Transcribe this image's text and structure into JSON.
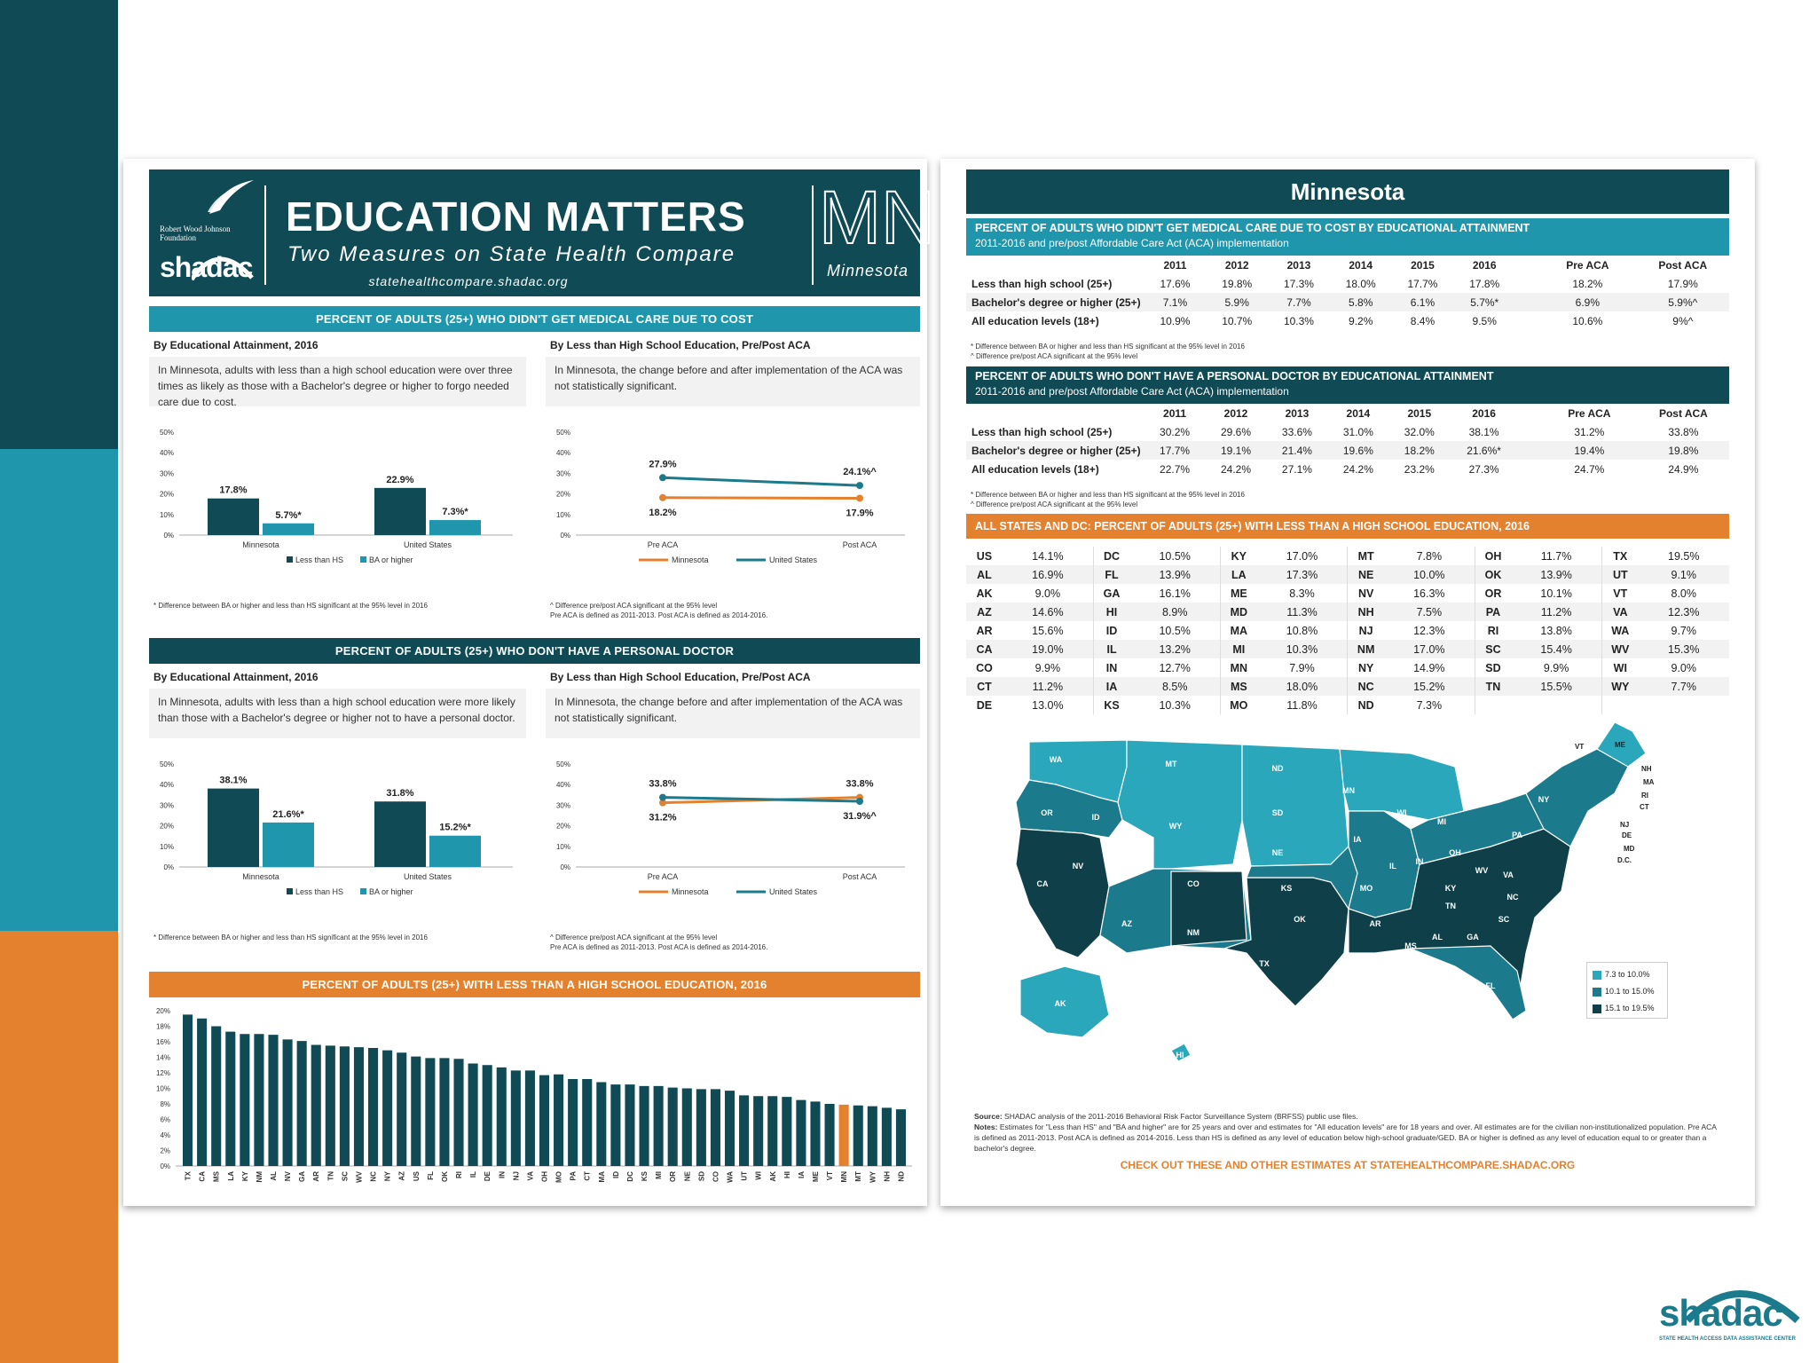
{
  "colors": {
    "dark": "#0f4a55",
    "teal": "#2096ad",
    "orange": "#e4812e",
    "mid": "#1b7a8c"
  },
  "header": {
    "rwj_line1": "Robert Wood Johnson",
    "rwj_line2": "Foundation",
    "shadac_logo": "shadac",
    "title": "EDUCATION MATTERS",
    "subtitle": "Two Measures on State Health Compare",
    "url": "statehealthcompare.shadac.org",
    "state_abbr": "MN",
    "state_name": "Minnesota"
  },
  "section1": {
    "title": "PERCENT OF ADULTS (25+) WHO DIDN'T GET MEDICAL CARE DUE TO COST",
    "left_sub": "By Educational Attainment, 2016",
    "left_note": "In Minnesota, adults with less than a high school education were over three times as likely as those with a Bachelor's degree or higher to forgo needed care due to cost.",
    "right_sub": "By Less than High School Education, Pre/Post ACA",
    "right_note": "In Minnesota, the change before and after implementation of the ACA was not statistically significant.",
    "left_fn": "* Difference between BA or higher and less than HS significant at the 95% level in 2016",
    "right_fn1": "^ Difference pre/post ACA significant at the 95% level",
    "right_fn2": "Pre ACA is defined as 2011-2013. Post ACA is defined as 2014-2016."
  },
  "section2": {
    "title": "PERCENT OF ADULTS (25+) WHO DON'T HAVE A PERSONAL DOCTOR",
    "left_sub": "By Educational Attainment, 2016",
    "left_note": "In Minnesota, adults with less than a high school education were more likely than those with a Bachelor's degree or higher not to have a personal doctor.",
    "right_sub": "By Less than High School Education, Pre/Post ACA",
    "right_note": "In Minnesota, the change before and after implementation of the ACA was not statistically significant.",
    "left_fn": "* Difference between BA or higher and less than HS significant at the 95% level in 2016",
    "right_fn1": "^ Difference pre/post ACA significant at the 95% level",
    "right_fn2": "Pre ACA is defined as 2011-2013. Post ACA is defined as 2014-2016."
  },
  "section3": {
    "title": "PERCENT OF ADULTS (25+) WITH LESS THAN A HIGH SCHOOL EDUCATION, 2016"
  },
  "chart_data": [
    {
      "type": "bar",
      "title": "Didn't get medical care due to cost, by educational attainment, 2016",
      "categories": [
        "Minnesota",
        "United States"
      ],
      "series": [
        {
          "name": "Less than HS",
          "values": [
            17.8,
            22.9
          ],
          "labels": [
            "17.8%",
            "22.9%"
          ]
        },
        {
          "name": "BA or higher",
          "values": [
            5.7,
            7.3
          ],
          "labels": [
            "5.7%*",
            "7.3%*"
          ]
        }
      ],
      "yticks": [
        "0%",
        "10%",
        "20%",
        "30%",
        "40%",
        "50%"
      ],
      "ylim": [
        0,
        50
      ]
    },
    {
      "type": "line",
      "title": "Didn't get medical care due to cost, less than HS, pre/post ACA",
      "categories": [
        "Pre ACA",
        "Post ACA"
      ],
      "series": [
        {
          "name": "Minnesota",
          "values": [
            18.2,
            17.9
          ],
          "labels": [
            "18.2%",
            "17.9%"
          ]
        },
        {
          "name": "United States",
          "values": [
            27.9,
            24.1
          ],
          "labels": [
            "27.9%",
            "24.1%^"
          ]
        }
      ],
      "yticks": [
        "0%",
        "10%",
        "20%",
        "30%",
        "40%",
        "50%"
      ],
      "ylim": [
        0,
        50
      ]
    },
    {
      "type": "bar",
      "title": "Don't have a personal doctor, by educational attainment, 2016",
      "categories": [
        "Minnesota",
        "United States"
      ],
      "series": [
        {
          "name": "Less than HS",
          "values": [
            38.1,
            31.8
          ],
          "labels": [
            "38.1%",
            "31.8%"
          ]
        },
        {
          "name": "BA or higher",
          "values": [
            21.6,
            15.2
          ],
          "labels": [
            "21.6%*",
            "15.2%*"
          ]
        }
      ],
      "yticks": [
        "0%",
        "10%",
        "20%",
        "30%",
        "40%",
        "50%"
      ],
      "ylim": [
        0,
        50
      ]
    },
    {
      "type": "line",
      "title": "Don't have a personal doctor, less than HS, pre/post ACA",
      "categories": [
        "Pre ACA",
        "Post ACA"
      ],
      "series": [
        {
          "name": "Minnesota",
          "values": [
            31.2,
            33.8
          ],
          "labels": [
            "31.2%",
            "33.8%"
          ]
        },
        {
          "name": "United States",
          "values": [
            33.8,
            31.9
          ],
          "labels": [
            "33.8%",
            "31.9%^"
          ]
        }
      ],
      "yticks": [
        "0%",
        "10%",
        "20%",
        "30%",
        "40%",
        "50%"
      ],
      "ylim": [
        0,
        50
      ]
    },
    {
      "type": "bar",
      "title": "Percent of adults (25+) with less than a high school education, 2016",
      "categories": [
        "TX",
        "CA",
        "MS",
        "LA",
        "KY",
        "NM",
        "AL",
        "NV",
        "GA",
        "AR",
        "TN",
        "SC",
        "WV",
        "NC",
        "NY",
        "AZ",
        "US",
        "FL",
        "OK",
        "RI",
        "IL",
        "DE",
        "IN",
        "NJ",
        "VA",
        "OH",
        "MO",
        "PA",
        "CT",
        "MA",
        "ID",
        "DC",
        "KS",
        "MI",
        "OR",
        "NE",
        "SD",
        "CO",
        "WA",
        "UT",
        "WI",
        "AK",
        "HI",
        "IA",
        "ME",
        "VT",
        "MN",
        "MT",
        "WY",
        "NH",
        "ND"
      ],
      "values": [
        19.5,
        19.0,
        18.0,
        17.3,
        17.0,
        17.0,
        16.9,
        16.3,
        16.1,
        15.6,
        15.5,
        15.4,
        15.3,
        15.2,
        14.9,
        14.6,
        14.1,
        13.9,
        13.9,
        13.8,
        13.2,
        13.0,
        12.7,
        12.3,
        12.3,
        11.7,
        11.8,
        11.2,
        11.2,
        10.8,
        10.5,
        10.5,
        10.3,
        10.3,
        10.1,
        10.0,
        9.9,
        9.9,
        9.7,
        9.1,
        9.0,
        9.0,
        8.9,
        8.5,
        8.3,
        8.0,
        7.9,
        7.8,
        7.7,
        7.5,
        7.3
      ],
      "highlight": "MN",
      "yticks": [
        "0%",
        "2%",
        "4%",
        "6%",
        "8%",
        "10%",
        "12%",
        "14%",
        "16%",
        "18%",
        "20%"
      ],
      "ylim": [
        0,
        20
      ]
    }
  ],
  "legend": {
    "less_hs": "Less than HS",
    "ba": "BA or higher",
    "mn": "Minnesota",
    "us": "United States"
  },
  "right": {
    "title": "Minnesota",
    "t1_title": "PERCENT OF ADULTS WHO DIDN'T GET MEDICAL CARE DUE TO COST BY EDUCATIONAL ATTAINMENT",
    "t1_sub": "2011-2016 and pre/post Affordable Care Act (ACA) implementation",
    "t2_title": "PERCENT OF ADULTS WHO DON'T HAVE A PERSONAL DOCTOR BY EDUCATIONAL ATTAINMENT",
    "t2_sub": "2011-2016 and pre/post Affordable Care Act (ACA) implementation",
    "cols": [
      "2011",
      "2012",
      "2013",
      "2014",
      "2015",
      "2016",
      "Pre ACA",
      "Post ACA"
    ],
    "t1_rows": [
      {
        "label": "Less than high school (25+)",
        "v": [
          "17.6%",
          "19.8%",
          "17.3%",
          "18.0%",
          "17.7%",
          "17.8%",
          "18.2%",
          "17.9%"
        ]
      },
      {
        "label": "Bachelor's degree or higher (25+)",
        "v": [
          "7.1%",
          "5.9%",
          "7.7%",
          "5.8%",
          "6.1%",
          "5.7%*",
          "6.9%",
          "5.9%^"
        ]
      },
      {
        "label": "All education levels (18+)",
        "v": [
          "10.9%",
          "10.7%",
          "10.3%",
          "9.2%",
          "8.4%",
          "9.5%",
          "10.6%",
          "9%^"
        ]
      }
    ],
    "t2_rows": [
      {
        "label": "Less than high school (25+)",
        "v": [
          "30.2%",
          "29.6%",
          "33.6%",
          "31.0%",
          "32.0%",
          "38.1%",
          "31.2%",
          "33.8%"
        ]
      },
      {
        "label": "Bachelor's degree or higher (25+)",
        "v": [
          "17.7%",
          "19.1%",
          "21.4%",
          "19.6%",
          "18.2%",
          "21.6%*",
          "19.4%",
          "19.8%"
        ]
      },
      {
        "label": "All education levels (18+)",
        "v": [
          "22.7%",
          "24.2%",
          "27.1%",
          "24.2%",
          "23.2%",
          "27.3%",
          "24.7%",
          "24.9%"
        ]
      }
    ],
    "fn_a": "* Difference between BA or higher and less than HS significant at the 95% level in 2016",
    "fn_b": "^ Difference pre/post ACA significant at the 95% level",
    "states_title": "ALL STATES AND DC: PERCENT OF ADULTS (25+) WITH LESS THAN A HIGH SCHOOL EDUCATION, 2016",
    "state_grid": [
      [
        [
          "US",
          "14.1%"
        ],
        [
          "DC",
          "10.5%"
        ],
        [
          "KY",
          "17.0%"
        ],
        [
          "MT",
          "7.8%"
        ],
        [
          "OH",
          "11.7%"
        ],
        [
          "TX",
          "19.5%"
        ]
      ],
      [
        [
          "AL",
          "16.9%"
        ],
        [
          "FL",
          "13.9%"
        ],
        [
          "LA",
          "17.3%"
        ],
        [
          "NE",
          "10.0%"
        ],
        [
          "OK",
          "13.9%"
        ],
        [
          "UT",
          "9.1%"
        ]
      ],
      [
        [
          "AK",
          "9.0%"
        ],
        [
          "GA",
          "16.1%"
        ],
        [
          "ME",
          "8.3%"
        ],
        [
          "NV",
          "16.3%"
        ],
        [
          "OR",
          "10.1%"
        ],
        [
          "VT",
          "8.0%"
        ]
      ],
      [
        [
          "AZ",
          "14.6%"
        ],
        [
          "HI",
          "8.9%"
        ],
        [
          "MD",
          "11.3%"
        ],
        [
          "NH",
          "7.5%"
        ],
        [
          "PA",
          "11.2%"
        ],
        [
          "VA",
          "12.3%"
        ]
      ],
      [
        [
          "AR",
          "15.6%"
        ],
        [
          "ID",
          "10.5%"
        ],
        [
          "MA",
          "10.8%"
        ],
        [
          "NJ",
          "12.3%"
        ],
        [
          "RI",
          "13.8%"
        ],
        [
          "WA",
          "9.7%"
        ]
      ],
      [
        [
          "CA",
          "19.0%"
        ],
        [
          "IL",
          "13.2%"
        ],
        [
          "MI",
          "10.3%"
        ],
        [
          "NM",
          "17.0%"
        ],
        [
          "SC",
          "15.4%"
        ],
        [
          "WV",
          "15.3%"
        ]
      ],
      [
        [
          "CO",
          "9.9%"
        ],
        [
          "IN",
          "12.7%"
        ],
        [
          "MN",
          "7.9%"
        ],
        [
          "NY",
          "14.9%"
        ],
        [
          "SD",
          "9.9%"
        ],
        [
          "WI",
          "9.0%"
        ]
      ],
      [
        [
          "CT",
          "11.2%"
        ],
        [
          "IA",
          "8.5%"
        ],
        [
          "MS",
          "18.0%"
        ],
        [
          "NC",
          "15.2%"
        ],
        [
          "TN",
          "15.5%"
        ],
        [
          "WY",
          "7.7%"
        ]
      ],
      [
        [
          "DE",
          "13.0%"
        ],
        [
          "KS",
          "10.3%"
        ],
        [
          "MO",
          "11.8%"
        ],
        [
          "ND",
          "7.3%"
        ],
        [
          "",
          ""
        ],
        [
          "",
          ""
        ]
      ]
    ],
    "map_legend": [
      "7.3 to 10.0%",
      "10.1 to 15.0%",
      "15.1 to 19.5%"
    ],
    "source_label": "Source:",
    "source": "SHADAC analysis of the 2011-2016 Behavioral Risk Factor Surveillance System (BRFSS) public use files.",
    "notes_label": "Notes:",
    "notes": "Estimates for \"Less than HS\" and \"BA and higher\" are for 25 years and over and estimates for \"All education levels\" are for 18 years and over. All estimates are for the civilian non-institutionalized population. Pre ACA is defined as 2011-2013. Post ACA is defined as 2014-2016. Less than HS is defined as any level of education below high-school graduate/GED. BA or higher is defined as any level of education equal to or greater than a bachelor's degree.",
    "cta": "CHECK OUT THESE AND OTHER ESTIMATES AT STATEHEALTHCOMPARE.SHADAC.ORG"
  },
  "footer_logo": {
    "name": "shadac",
    "tagline": "STATE HEALTH ACCESS DATA ASSISTANCE CENTER"
  }
}
